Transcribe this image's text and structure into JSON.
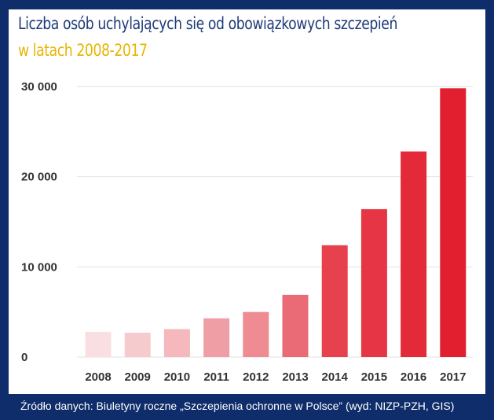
{
  "chart_data": {
    "type": "bar",
    "title": "Liczba osób uchylających się od obowiązkowych szczepień",
    "subtitle": "w latach 2008-2017",
    "categories": [
      "2008",
      "2009",
      "2010",
      "2011",
      "2012",
      "2013",
      "2014",
      "2015",
      "2016",
      "2017"
    ],
    "values": [
      2800,
      2700,
      3100,
      4300,
      5000,
      6900,
      12400,
      16400,
      22800,
      29800
    ],
    "ylim": [
      0,
      30000
    ],
    "yticks": [
      0,
      10000,
      20000,
      30000
    ],
    "ytick_labels": [
      "0",
      "10 000",
      "20 000",
      "30 000"
    ],
    "grid": true,
    "bar_colors": [
      "#f9dfe1",
      "#f6cbce",
      "#f4b8bd",
      "#f09ea5",
      "#ee8b93",
      "#ea6a76",
      "#e8414e",
      "#e63544",
      "#e32a39",
      "#e11f2e"
    ]
  },
  "footer": {
    "source": "Źródło danych: Biuletyny roczne „Szczepienia ochronne w Polsce” (wyd: NIZP-PZH, GIS)"
  }
}
